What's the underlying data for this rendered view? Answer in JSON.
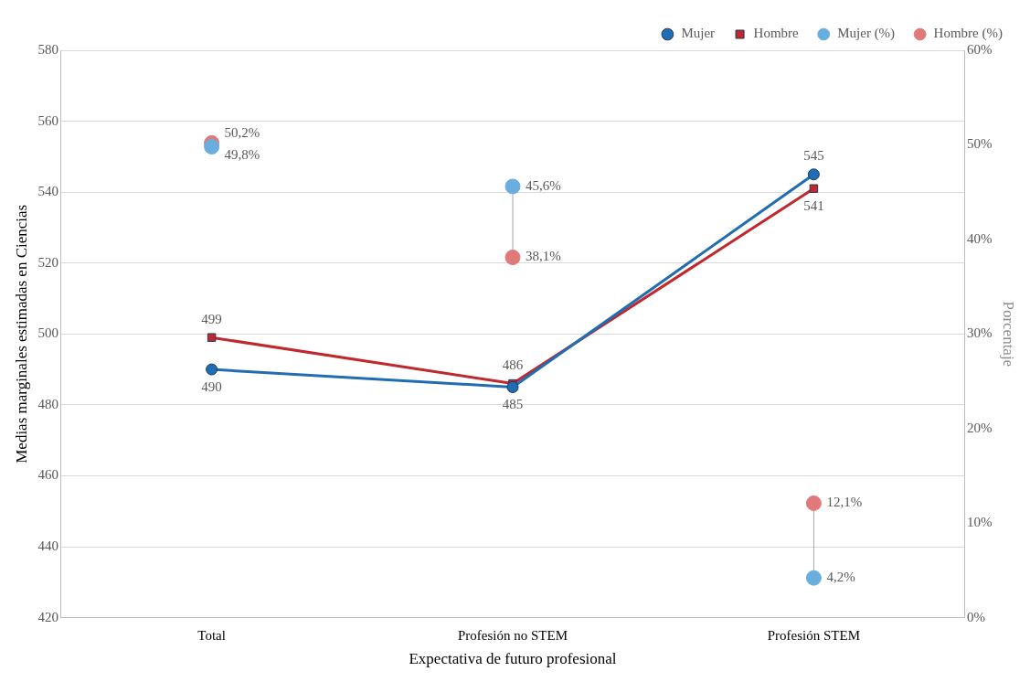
{
  "chart_data": {
    "type": "line",
    "xlabel": "Expectativa de futuro profesional",
    "ylabel": "Medias marginales estimadas en Ciencias",
    "y2label": "Porcentaje",
    "categories": [
      "Total",
      "Profesión no STEM",
      "Profesión STEM"
    ],
    "series": [
      {
        "name": "Mujer",
        "marker": "circle",
        "color": "#1f6db4",
        "values": [
          490,
          485,
          545
        ],
        "value_labels": [
          "490",
          "485",
          "545"
        ]
      },
      {
        "name": "Hombre",
        "marker": "square",
        "color": "#c0282d",
        "values": [
          499,
          486,
          541
        ],
        "value_labels": [
          "499",
          "486",
          "541"
        ]
      },
      {
        "name": "Mujer (%)",
        "type": "scatter",
        "axis": "y2",
        "marker": "circle",
        "color": "#6aaee0",
        "values": [
          49.8,
          45.6,
          4.2
        ],
        "value_labels": [
          "49,8%",
          "45,6%",
          "4,2%"
        ]
      },
      {
        "name": "Hombre (%)",
        "type": "scatter",
        "axis": "y2",
        "marker": "circle",
        "color": "#e07a7a",
        "values": [
          50.2,
          38.1,
          12.1
        ],
        "value_labels": [
          "50,2%",
          "38,1%",
          "12,1%"
        ]
      }
    ],
    "ylim": [
      420,
      580
    ],
    "yticks": [
      420,
      440,
      460,
      480,
      500,
      520,
      540,
      560,
      580
    ],
    "y2lim": [
      0,
      60
    ],
    "y2ticks": [
      {
        "value": 0,
        "label": "0%"
      },
      {
        "value": 10,
        "label": "10%"
      },
      {
        "value": 20,
        "label": "20%"
      },
      {
        "value": 30,
        "label": "30%"
      },
      {
        "value": 40,
        "label": "40%"
      },
      {
        "value": 50,
        "label": "50%"
      },
      {
        "value": 60,
        "label": "60%"
      }
    ],
    "grid": "y",
    "legend": "top right"
  }
}
